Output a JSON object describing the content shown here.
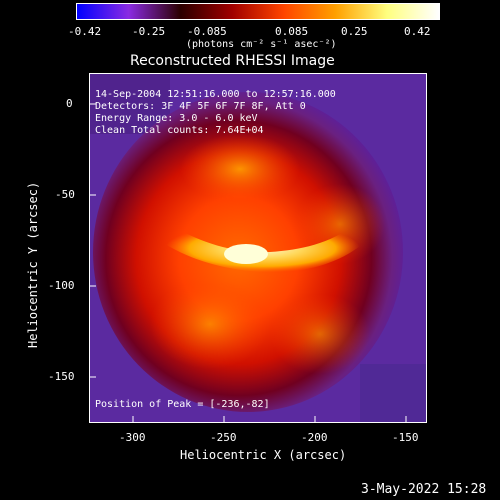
{
  "colorbar": {
    "tick_labels": [
      "-0.42",
      "-0.25",
      "-0.085",
      "0.085",
      "0.25",
      "0.42"
    ],
    "units": "(photons cm⁻² s⁻¹ asec⁻²)",
    "colors": [
      "#0000ff",
      "#8a2be2",
      "#2b0000",
      "#a00000",
      "#ff4500",
      "#ffa000",
      "#ffff80",
      "#ffffff"
    ]
  },
  "plot": {
    "title": "Reconstructed RHESSI Image",
    "info_lines": [
      "14-Sep-2004 12:51:16.000 to 12:57:16.000",
      "Detectors: 3F 4F 5F 6F 7F 8F, Att 0",
      "Energy Range: 3.0 - 6.0 keV",
      "Clean     Total counts: 7.64E+04"
    ],
    "peak_text": "Position of Peak = [-236,-82]",
    "x_axis": {
      "label": "Heliocentric X (arcsec)",
      "tick_labels": [
        "-300",
        "-250",
        "-200",
        "-150"
      ]
    },
    "y_axis": {
      "label": "Heliocentric Y (arcsec)",
      "tick_labels": [
        "0",
        "-50",
        "-100",
        "-150"
      ]
    }
  },
  "timestamp": "3-May-2022 15:28"
}
